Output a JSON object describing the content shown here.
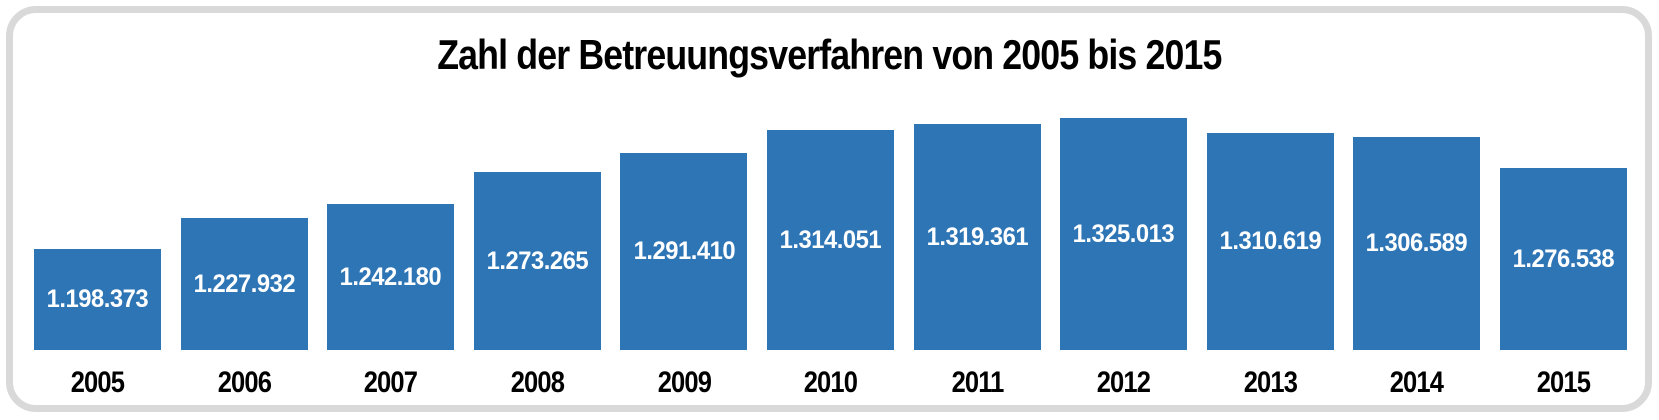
{
  "page": {
    "background_color": "#ffffff",
    "card_border_color": "#d9d9d9"
  },
  "chart_data": {
    "type": "bar",
    "title": "Zahl der Betreuungsverfahren von 2005 bis 2015",
    "categories": [
      "2005",
      "2006",
      "2007",
      "2008",
      "2009",
      "2010",
      "2011",
      "2012",
      "2013",
      "2014",
      "2015"
    ],
    "values": [
      1198373,
      1227932,
      1242180,
      1273265,
      1291410,
      1314051,
      1319361,
      1325013,
      1310619,
      1306589,
      1276538
    ],
    "labels": [
      "1.198.373",
      "1.227.932",
      "1.242.180",
      "1.273.265",
      "1.291.410",
      "1.314.051",
      "1.319.361",
      "1.325.013",
      "1.310.619",
      "1.306.589",
      "1.276.538"
    ],
    "xlabel": "",
    "ylabel": "",
    "ylim": [
      1100000,
      1333000
    ],
    "grid": false,
    "legend": false,
    "value_labels_position": "inside-center",
    "bar_color": "#2e75b6",
    "value_label_color": "#ffffff",
    "tick_label_color": "#000000",
    "title_color": "#000000"
  }
}
